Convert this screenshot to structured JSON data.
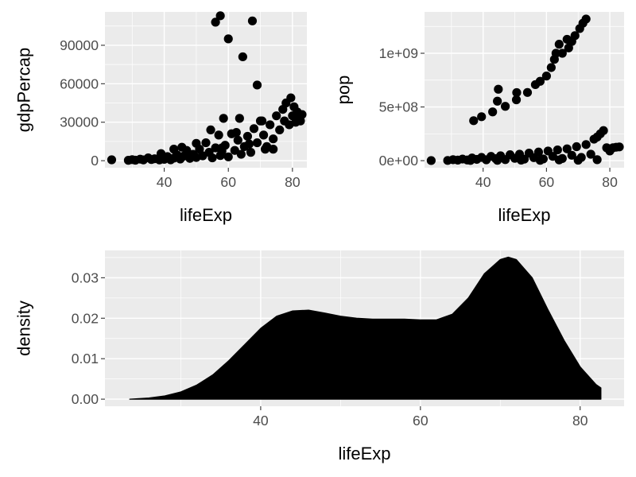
{
  "chart_data": [
    {
      "type": "scatter",
      "xlabel": "lifeExp",
      "ylabel": "gdpPercap",
      "xlim": [
        21.5,
        84.5
      ],
      "ylim": [
        -5500,
        116000
      ],
      "x_ticks": [
        40,
        60,
        80
      ],
      "x_tick_labels": [
        "40",
        "60",
        "80"
      ],
      "y_ticks": [
        0,
        30000,
        60000,
        90000
      ],
      "y_tick_labels": [
        "0",
        "30000",
        "60000",
        "90000"
      ],
      "grid": true,
      "point_color": "#000000",
      "points": [
        [
          23.6,
          700
        ],
        [
          28.8,
          300
        ],
        [
          30.0,
          800
        ],
        [
          31.0,
          400
        ],
        [
          32.5,
          1200
        ],
        [
          33.5,
          600
        ],
        [
          35.0,
          2200
        ],
        [
          36.0,
          900
        ],
        [
          37.0,
          1500
        ],
        [
          38.5,
          600
        ],
        [
          39.0,
          2800
        ],
        [
          40.0,
          1100
        ],
        [
          41.0,
          3200
        ],
        [
          42.0,
          700
        ],
        [
          43.0,
          2000
        ],
        [
          44.0,
          4500
        ],
        [
          45.0,
          1300
        ],
        [
          46.0,
          3500
        ],
        [
          47.0,
          8000
        ],
        [
          48.0,
          1800
        ],
        [
          49.0,
          5000
        ],
        [
          50.0,
          2500
        ],
        [
          51.0,
          9000
        ],
        [
          52.0,
          3800
        ],
        [
          53.0,
          14000
        ],
        [
          54.0,
          6500
        ],
        [
          54.5,
          24000
        ],
        [
          55.0,
          2200
        ],
        [
          56.0,
          10000
        ],
        [
          57.0,
          20000
        ],
        [
          57.5,
          4000
        ],
        [
          58.0,
          7500
        ],
        [
          58.5,
          33000
        ],
        [
          59.0,
          12000
        ],
        [
          60.0,
          3000
        ],
        [
          61.0,
          21000
        ],
        [
          62.0,
          8000
        ],
        [
          63.0,
          16000
        ],
        [
          63.5,
          33000
        ],
        [
          64.0,
          5000
        ],
        [
          65.0,
          11000
        ],
        [
          66.0,
          19000
        ],
        [
          67.0,
          6500
        ],
        [
          68.0,
          25000
        ],
        [
          69.0,
          14000
        ],
        [
          70.0,
          31000
        ],
        [
          71.0,
          20000
        ],
        [
          72.0,
          11000
        ],
        [
          73.0,
          28000
        ],
        [
          74.0,
          17000
        ],
        [
          75.0,
          35000
        ],
        [
          76.0,
          24000
        ],
        [
          77.0,
          40000
        ],
        [
          77.5,
          31000
        ],
        [
          78.0,
          45000
        ],
        [
          79.0,
          28000
        ],
        [
          79.5,
          49000
        ],
        [
          80.0,
          35000
        ],
        [
          80.5,
          42000
        ],
        [
          81.0,
          30000
        ],
        [
          81.5,
          38000
        ],
        [
          82.0,
          34000
        ],
        [
          82.5,
          31000
        ],
        [
          83.0,
          36000
        ],
        [
          56.0,
          108000
        ],
        [
          57.5,
          113000
        ],
        [
          60.0,
          95000
        ],
        [
          64.5,
          81000
        ],
        [
          67.5,
          109000
        ],
        [
          69.0,
          59000
        ],
        [
          70.5,
          31000
        ],
        [
          58.0,
          10000
        ],
        [
          45.5,
          10500
        ],
        [
          50.0,
          13500
        ],
        [
          39.0,
          5500
        ],
        [
          43.0,
          9000
        ],
        [
          62.5,
          22000
        ],
        [
          66.5,
          13000
        ],
        [
          71.5,
          9000
        ],
        [
          74.0,
          9000
        ]
      ]
    },
    {
      "type": "scatter",
      "xlabel": "lifeExp",
      "ylabel": "pop",
      "xlim": [
        21.5,
        84.5
      ],
      "ylim": [
        -66000000,
        1385000000
      ],
      "x_ticks": [
        40,
        60,
        80
      ],
      "x_tick_labels": [
        "40",
        "60",
        "80"
      ],
      "y_ticks": [
        0,
        500000000,
        1000000000
      ],
      "y_tick_labels": [
        "0e+00",
        "5e+08",
        "1e+09"
      ],
      "grid": true,
      "point_color": "#000000",
      "points": [
        [
          23.6,
          1000000
        ],
        [
          28.8,
          2000000
        ],
        [
          30.5,
          9000000
        ],
        [
          32.0,
          5000000
        ],
        [
          33.5,
          15000000
        ],
        [
          35.0,
          6000000
        ],
        [
          36.5,
          25000000
        ],
        [
          38.0,
          12000000
        ],
        [
          39.5,
          30000000
        ],
        [
          41.0,
          8000000
        ],
        [
          42.5,
          40000000
        ],
        [
          44.0,
          18000000
        ],
        [
          45.5,
          45000000
        ],
        [
          47.0,
          10000000
        ],
        [
          48.5,
          55000000
        ],
        [
          50.0,
          22000000
        ],
        [
          51.5,
          60000000
        ],
        [
          53.0,
          14000000
        ],
        [
          54.5,
          70000000
        ],
        [
          56.0,
          28000000
        ],
        [
          57.5,
          80000000
        ],
        [
          59.0,
          16000000
        ],
        [
          60.5,
          90000000
        ],
        [
          62.0,
          40000000
        ],
        [
          63.5,
          100000000
        ],
        [
          65.0,
          20000000
        ],
        [
          66.5,
          110000000
        ],
        [
          68.0,
          50000000
        ],
        [
          69.5,
          130000000
        ],
        [
          71.0,
          30000000
        ],
        [
          72.5,
          150000000
        ],
        [
          74.0,
          60000000
        ],
        [
          75.0,
          200000000
        ],
        [
          76.0,
          220000000
        ],
        [
          77.0,
          250000000
        ],
        [
          78.0,
          280000000
        ],
        [
          79.0,
          120000000
        ],
        [
          80.0,
          90000000
        ],
        [
          81.0,
          120000000
        ],
        [
          82.0,
          125000000
        ],
        [
          83.0,
          128000000
        ],
        [
          52.0,
          5000000
        ],
        [
          58.0,
          3000000
        ],
        [
          64.0,
          7000000
        ],
        [
          70.0,
          4000000
        ],
        [
          76.0,
          9000000
        ],
        [
          44.5,
          3000000
        ],
        [
          36.0,
          2000000
        ],
        [
          37.0,
          372000000
        ],
        [
          39.5,
          409000000
        ],
        [
          43.0,
          454000000
        ],
        [
          44.5,
          554000000
        ],
        [
          44.8,
          665000000
        ],
        [
          47.0,
          506000000
        ],
        [
          50.5,
          567000000
        ],
        [
          50.6,
          634000000
        ],
        [
          54.0,
          635000000
        ],
        [
          56.5,
          708000000
        ],
        [
          58.0,
          739000000
        ],
        [
          60.0,
          788000000
        ],
        [
          61.5,
          867000000
        ],
        [
          62.5,
          943000000
        ],
        [
          63.0,
          1000000000
        ],
        [
          64.0,
          1084000000
        ],
        [
          65.0,
          1000000000
        ],
        [
          67.0,
          1050000000
        ],
        [
          68.0,
          1110000000
        ],
        [
          69.0,
          1164000000
        ],
        [
          70.5,
          1230000000
        ],
        [
          71.5,
          1280000000
        ],
        [
          72.5,
          1319000000
        ],
        [
          66.5,
          1130000000
        ]
      ]
    },
    {
      "type": "area",
      "xlabel": "lifeExp",
      "ylabel": "density",
      "xlim": [
        20.5,
        85.5
      ],
      "ylim": [
        -0.00175,
        0.03675
      ],
      "x_ticks": [
        40,
        60,
        80
      ],
      "x_tick_labels": [
        "40",
        "60",
        "80"
      ],
      "y_ticks": [
        0.0,
        0.01,
        0.02,
        0.03
      ],
      "y_tick_labels": [
        "0.00",
        "0.01",
        "0.02",
        "0.03"
      ],
      "grid": true,
      "fill_color": "#000000",
      "x": [
        23.6,
        26,
        28,
        30,
        32,
        34,
        36,
        38,
        40,
        42,
        44,
        46,
        48,
        50,
        52,
        54,
        56,
        58,
        60,
        62,
        64,
        66,
        68,
        70,
        71,
        72,
        74,
        76,
        78,
        80,
        82,
        82.6
      ],
      "y": [
        0.0,
        0.0003,
        0.0008,
        0.0018,
        0.0035,
        0.006,
        0.0095,
        0.0135,
        0.0175,
        0.0205,
        0.0218,
        0.022,
        0.0213,
        0.0205,
        0.02,
        0.0198,
        0.0198,
        0.0198,
        0.0196,
        0.0196,
        0.021,
        0.025,
        0.031,
        0.0345,
        0.0351,
        0.0345,
        0.03,
        0.022,
        0.0145,
        0.008,
        0.0036,
        0.0028
      ]
    }
  ]
}
